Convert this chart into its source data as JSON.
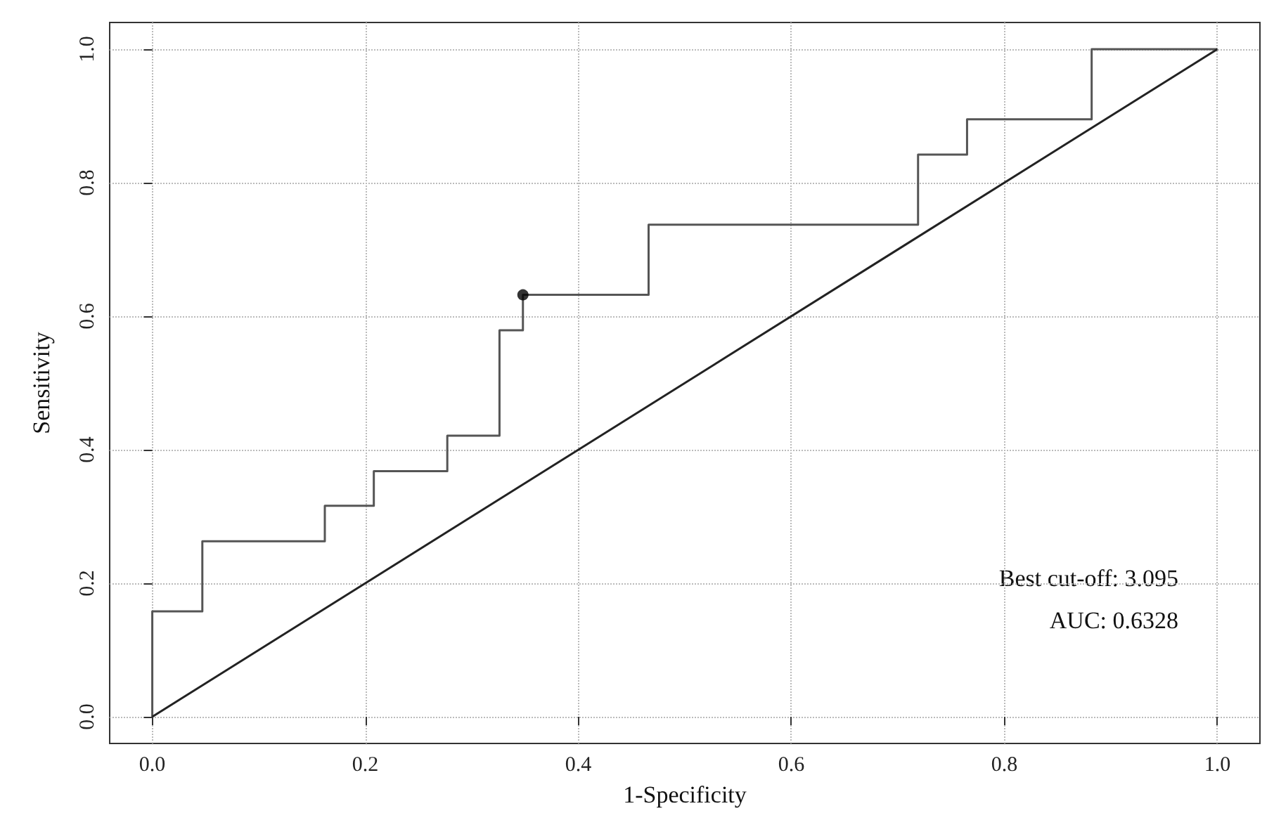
{
  "chart_data": {
    "type": "step",
    "xlabel": "1-Specificity",
    "ylabel": "Sensitivity",
    "xlim": [
      -0.04,
      1.04
    ],
    "ylim": [
      -0.04,
      1.04
    ],
    "xticks": [
      {
        "value": 0,
        "label": "0.0"
      },
      {
        "value": 0.2,
        "label": "0.2"
      },
      {
        "value": 0.4,
        "label": "0.4"
      },
      {
        "value": 0.6,
        "label": "0.6"
      },
      {
        "value": 0.8,
        "label": "0.8"
      },
      {
        "value": 1,
        "label": "1.0"
      }
    ],
    "yticks": [
      {
        "value": 0,
        "label": "0.0"
      },
      {
        "value": 0.2,
        "label": "0.2"
      },
      {
        "value": 0.4,
        "label": "0.4"
      },
      {
        "value": 0.6,
        "label": "0.6"
      },
      {
        "value": 0.8,
        "label": "0.8"
      },
      {
        "value": 1,
        "label": "1.0"
      }
    ],
    "grid": true,
    "series": [
      {
        "color": "#555555",
        "x": [
          0,
          0,
          0.047,
          0.162,
          0.208,
          0.277,
          0.326,
          0.348,
          0.466,
          0.719,
          0.765,
          0.882,
          1
        ],
        "values": [
          0,
          0.158,
          0.263,
          0.316,
          0.368,
          0.421,
          0.579,
          0.632,
          0.737,
          0.842,
          0.895,
          1,
          1
        ]
      },
      {
        "type": "line",
        "color": "#222222",
        "x": [
          0,
          1
        ],
        "values": [
          0,
          1
        ]
      },
      {
        "type": "scatter",
        "color": "#000000",
        "x": [
          0.348
        ],
        "values": [
          0.632
        ]
      }
    ],
    "annotations": [
      "Best cut-off: 3.095",
      "AUC: 0.6328"
    ]
  }
}
